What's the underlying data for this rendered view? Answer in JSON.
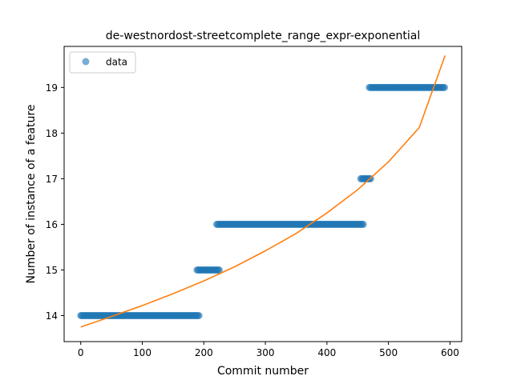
{
  "chart_data": {
    "type": "scatter",
    "title": "de-westnordost-streetcomplete_range_expr-exponential",
    "xlabel": "Commit number",
    "ylabel": "Number of instance of a feature",
    "xlim": [
      -27,
      619
    ],
    "ylim": [
      13.43,
      19.9
    ],
    "xticks": [
      0,
      100,
      200,
      300,
      400,
      500,
      600
    ],
    "yticks": [
      14,
      15,
      16,
      17,
      18,
      19
    ],
    "legend": {
      "position": "top-left",
      "entries": [
        "data"
      ]
    },
    "grid": false,
    "colors": {
      "data": "#1f77b4",
      "fit": "#ff7f0e"
    },
    "series": [
      {
        "name": "data",
        "kind": "scatter",
        "segments": [
          {
            "x_start": 0,
            "x_end": 192,
            "y": 14
          },
          {
            "x_start": 189,
            "x_end": 226,
            "y": 15
          },
          {
            "x_start": 221,
            "x_end": 459,
            "y": 16
          },
          {
            "x_start": 455,
            "x_end": 471,
            "y": 17
          },
          {
            "x_start": 469,
            "x_end": 592,
            "y": 19
          }
        ]
      },
      {
        "kind": "line",
        "x": [
          0,
          50,
          100,
          150,
          200,
          250,
          300,
          350,
          400,
          450,
          500,
          550,
          592
        ],
        "y": [
          13.75,
          13.98,
          14.22,
          14.48,
          14.76,
          15.07,
          15.42,
          15.8,
          16.25,
          16.76,
          17.37,
          18.12,
          19.7
        ]
      }
    ]
  }
}
